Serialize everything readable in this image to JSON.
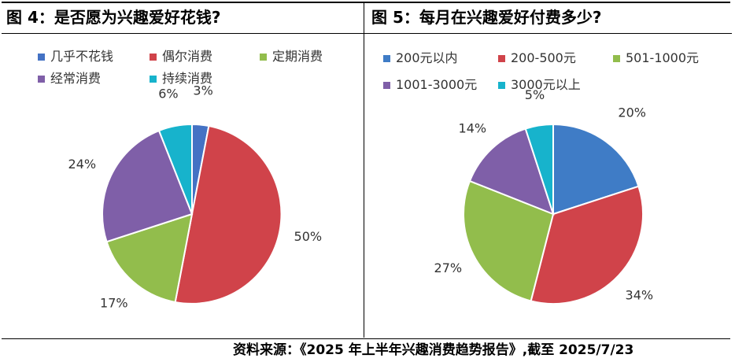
{
  "chart_data": [
    {
      "type": "pie",
      "title": "图 4：是否愿为兴趣爱好花钱?",
      "categories": [
        "几乎不花钱",
        "偶尔消费",
        "定期消费",
        "经常消费",
        "持续消费"
      ],
      "values": [
        3,
        50,
        17,
        24,
        6
      ],
      "value_labels": [
        "3%",
        "50%",
        "17%",
        "24%",
        "6%"
      ],
      "colors": [
        "#4472c4",
        "#d0434a",
        "#92bd4c",
        "#7f5fa8",
        "#17b3cc"
      ],
      "legend_position": "top-left"
    },
    {
      "type": "pie",
      "title": "图 5：每月在兴趣爱好付费多少?",
      "categories": [
        "200元以内",
        "200-500元",
        "501-1000元",
        "1001-3000元",
        "3000元以上"
      ],
      "values": [
        20,
        34,
        27,
        14,
        5
      ],
      "value_labels": [
        "20%",
        "34%",
        "27%",
        "14%",
        "5%"
      ],
      "colors": [
        "#3f7cc6",
        "#d0434a",
        "#92bd4c",
        "#7f5fa8",
        "#17b3cc"
      ],
      "legend_position": "top-left"
    }
  ],
  "source": "资料来源：《2025 年上半年兴趣消费趋势报告》,截至 2025/7/23"
}
